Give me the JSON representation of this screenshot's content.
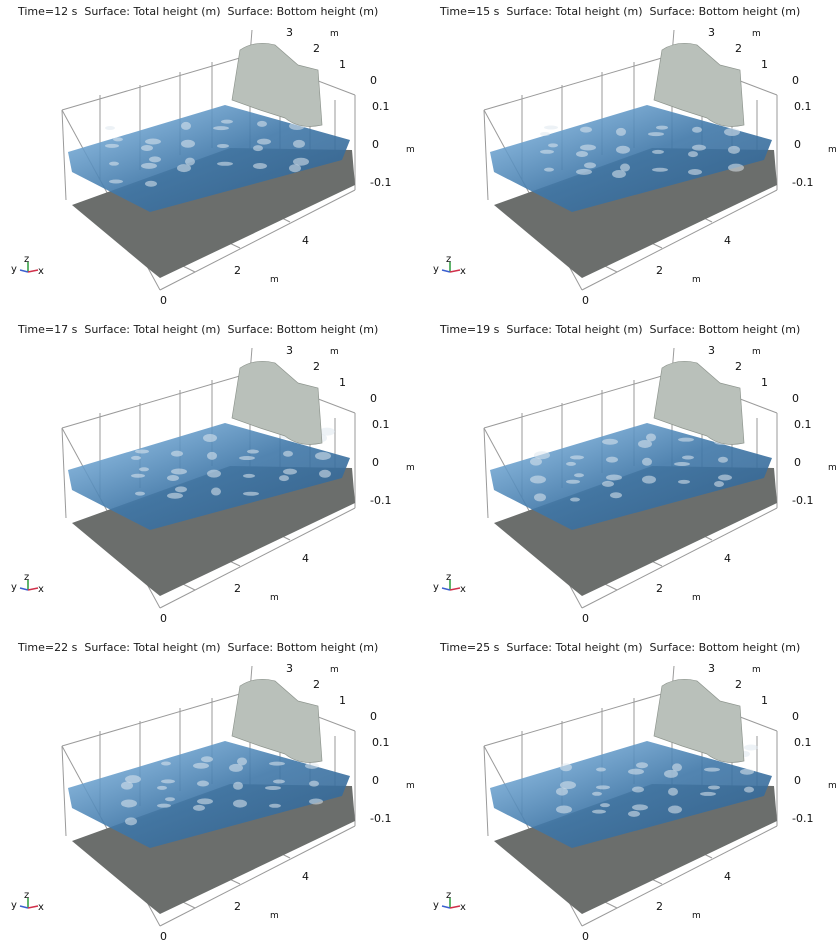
{
  "panels": [
    {
      "title": "Time=12 s  Surface: Total height (m)  Surface: Bottom height (m)"
    },
    {
      "title": "Time=15 s  Surface: Total height (m)  Surface: Bottom height (m)"
    },
    {
      "title": "Time=17 s  Surface: Total height (m)  Surface: Bottom height (m)"
    },
    {
      "title": "Time=19 s  Surface: Total height (m)  Surface: Bottom height (m)"
    },
    {
      "title": "Time=22 s  Surface: Total height (m)  Surface: Bottom height (m)"
    },
    {
      "title": "Time=25 s  Surface: Total height (m)  Surface: Bottom height (m)"
    }
  ],
  "axes": {
    "y_ticks": [
      "3",
      "2",
      "1",
      "0"
    ],
    "z_ticks": [
      "0.1",
      "0",
      "-0.1"
    ],
    "x_ticks": [
      "4",
      "2",
      "0"
    ],
    "unit": "m"
  },
  "triad": {
    "y": "y",
    "z": "z",
    "x": "x"
  },
  "colors": {
    "water": "#3f77a8",
    "water_light": "#8cc0ea",
    "bottom": "#6b6e6c",
    "hill": "#b9c0ba",
    "grid": "#9a9a9a"
  }
}
